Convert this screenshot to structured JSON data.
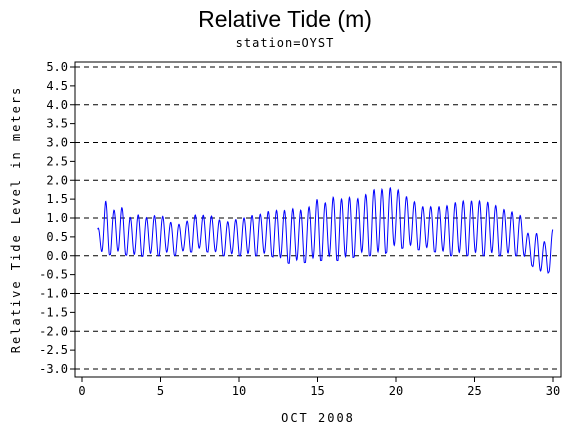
{
  "chart_data": {
    "type": "line",
    "title": "Relative Tide (m)",
    "subtitle": "station=OYST",
    "xlabel": "OCT 2008",
    "ylabel": "Relative Tide Level in meters",
    "xlim": [
      0,
      30
    ],
    "ylim": [
      -3.0,
      5.0
    ],
    "x_ticks": [
      "0",
      "5",
      "10",
      "15",
      "20",
      "25",
      "30"
    ],
    "y_ticks": [
      "5.0",
      "4.5",
      "4.0",
      "3.5",
      "3.0",
      "2.5",
      "2.0",
      "1.5",
      "1.0",
      "0.5",
      "0.0",
      "-0.5",
      "-1.0",
      "-1.5",
      "-2.0",
      "-2.5",
      "-3.0"
    ],
    "grid": "dashed horizontal lines at each whole meter",
    "series": [
      {
        "color": "#0000ff",
        "x": [
          1.0,
          1.5,
          2.0,
          2.5,
          3.0,
          3.5,
          4.0,
          4.5,
          5.0,
          5.5,
          6.0,
          6.5,
          7.0,
          7.5,
          8.0,
          8.5,
          9.0,
          9.5,
          10.0,
          10.5,
          11.0,
          11.5,
          12.0,
          12.5,
          13.0,
          13.5,
          14.0,
          14.5,
          15.0,
          15.5,
          16.0,
          16.5,
          17.0,
          17.5,
          18.0,
          18.5,
          19.0,
          19.5,
          20.0,
          20.5,
          21.0,
          21.5,
          22.0,
          22.5,
          23.0,
          23.5,
          24.0,
          24.5,
          25.0,
          25.5,
          26.0,
          26.5,
          27.0,
          27.5,
          28.0,
          28.5,
          29.0,
          29.5,
          30.0
        ],
        "y_high": [
          0.7,
          1.45,
          1.2,
          1.3,
          1.0,
          1.1,
          1.0,
          1.05,
          1.1,
          0.9,
          0.85,
          0.8,
          1.1,
          1.05,
          1.1,
          1.0,
          0.9,
          0.9,
          1.0,
          1.0,
          1.1,
          1.1,
          1.2,
          1.2,
          1.2,
          1.25,
          1.2,
          1.3,
          1.5,
          1.4,
          1.55,
          1.5,
          1.55,
          1.5,
          1.6,
          1.75,
          1.75,
          1.8,
          1.8,
          1.6,
          1.5,
          1.3,
          1.3,
          1.3,
          1.3,
          1.35,
          1.45,
          1.45,
          1.45,
          1.45,
          1.4,
          1.3,
          1.2,
          1.15,
          1.05,
          0.5,
          0.6,
          0.35,
          0.7
        ],
        "y_low": [
          0.1,
          0.0,
          0.05,
          0.05,
          0.0,
          -0.05,
          0.0,
          0.0,
          0.0,
          0.05,
          0.0,
          0.1,
          0.1,
          0.15,
          0.1,
          0.05,
          0.0,
          0.0,
          0.0,
          0.0,
          0.0,
          0.0,
          0.0,
          -0.1,
          -0.2,
          -0.2,
          -0.2,
          -0.15,
          -0.15,
          -0.1,
          -0.1,
          -0.15,
          -0.1,
          0.0,
          0.0,
          0.0,
          0.0,
          0.1,
          0.2,
          0.2,
          0.2,
          0.15,
          0.15,
          0.1,
          0.05,
          0.0,
          0.0,
          0.0,
          0.0,
          0.0,
          0.0,
          0.0,
          0.0,
          0.0,
          0.0,
          -0.2,
          -0.4,
          -0.55,
          -0.3
        ]
      }
    ]
  }
}
